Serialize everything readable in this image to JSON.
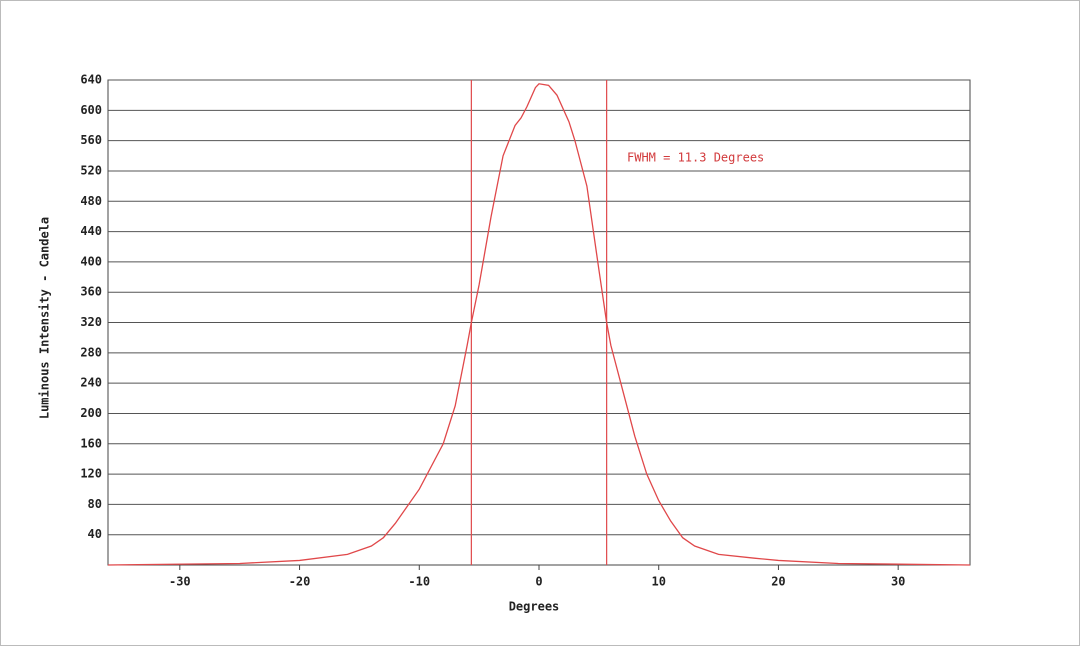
{
  "chart_data": {
    "type": "line",
    "xlabel": "Degrees",
    "ylabel": "Luminous Intensity - Candela",
    "annotation": "FWHM = 11.3 Degrees",
    "color": "#e0484a",
    "x": [
      -36,
      -25,
      -20,
      -16,
      -14,
      -13,
      -12,
      -10,
      -8,
      -7,
      -6,
      -5.65,
      -5,
      -4,
      -3,
      -2,
      -1.5,
      -1,
      -0.3,
      0,
      0.8,
      1.5,
      2.5,
      3,
      4,
      5,
      5.65,
      6,
      7,
      8,
      9,
      10,
      11,
      12,
      13,
      15,
      18,
      20,
      25,
      36
    ],
    "values": [
      0,
      2,
      6,
      14,
      25,
      36,
      55,
      100,
      160,
      210,
      290,
      320,
      370,
      460,
      540,
      580,
      590,
      605,
      630,
      635,
      633,
      620,
      585,
      560,
      500,
      390,
      320,
      290,
      230,
      170,
      120,
      85,
      58,
      36,
      25,
      14,
      9,
      6,
      2,
      0
    ],
    "vlines": [
      -5.65,
      5.65
    ],
    "xlim": [
      -36,
      36
    ],
    "ylim": [
      0,
      640
    ],
    "xticks": [
      -30,
      -20,
      -10,
      0,
      10,
      20,
      30
    ],
    "yticks": [
      40,
      80,
      120,
      160,
      200,
      240,
      280,
      320,
      360,
      400,
      440,
      480,
      520,
      560,
      600,
      640
    ],
    "grid": true
  }
}
